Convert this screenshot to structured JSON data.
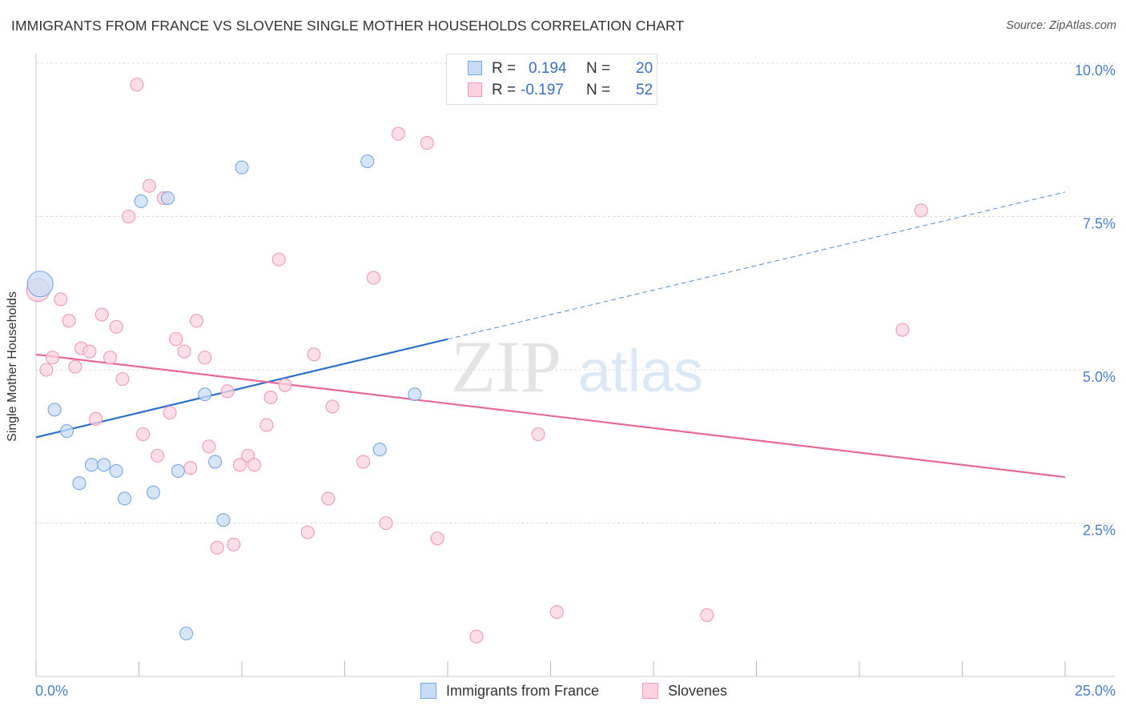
{
  "title": "IMMIGRANTS FROM FRANCE VS SLOVENE SINGLE MOTHER HOUSEHOLDS CORRELATION CHART",
  "source": "Source: ZipAtlas.com",
  "watermark": {
    "part1": "ZIP",
    "part2": "atlas"
  },
  "legend": {
    "r_label": "R =",
    "n_label": "N =",
    "rows": [
      {
        "r": "0.194",
        "n": "20",
        "color": "#a8c8f0"
      },
      {
        "r": "-0.197",
        "n": "52",
        "color": "#f8b8cc"
      }
    ]
  },
  "bottom_legend": [
    {
      "label": "Immigrants from France",
      "color": "#a8c8f0"
    },
    {
      "label": "Slovenes",
      "color": "#f8b8cc"
    }
  ],
  "colors": {
    "blue_fill": "#c9dcf5",
    "blue_stroke": "#7aa6e0",
    "blue_line": "#2d6fc9",
    "pink_fill": "#fbd3e0",
    "pink_stroke": "#f09ab5",
    "pink_line": "#e8689a",
    "tick_label": "#4a7ec9",
    "grid": "#dddddd"
  },
  "chart_data": {
    "type": "scatter",
    "title": "IMMIGRANTS FROM FRANCE VS SLOVENE SINGLE MOTHER HOUSEHOLDS CORRELATION CHART",
    "xlabel": "",
    "ylabel": "Single Mother Households",
    "xlim": [
      0,
      25
    ],
    "ylim": [
      0,
      10.2
    ],
    "x_tick_labels": [
      {
        "value": 0,
        "label": "0.0%"
      },
      {
        "value": 25,
        "label": "25.0%"
      }
    ],
    "y_tick_labels": [
      {
        "value": 2.5,
        "label": "2.5%"
      },
      {
        "value": 5.0,
        "label": "5.0%"
      },
      {
        "value": 7.5,
        "label": "7.5%"
      },
      {
        "value": 10.0,
        "label": "10.0%"
      }
    ],
    "grid": "horizontal dashed",
    "series": [
      {
        "name": "Immigrants from France",
        "points": [
          [
            0.1,
            6.4,
            2.0
          ],
          [
            0.45,
            4.35,
            1
          ],
          [
            0.75,
            4.0,
            1
          ],
          [
            1.05,
            3.15,
            1
          ],
          [
            1.35,
            3.45,
            1
          ],
          [
            1.65,
            3.45,
            1
          ],
          [
            1.95,
            3.35,
            1
          ],
          [
            2.15,
            2.9,
            1
          ],
          [
            2.55,
            7.75,
            1
          ],
          [
            2.85,
            3.0,
            1
          ],
          [
            3.2,
            7.8,
            1
          ],
          [
            3.45,
            3.35,
            1
          ],
          [
            3.65,
            0.7,
            1
          ],
          [
            4.1,
            4.6,
            1
          ],
          [
            4.35,
            3.5,
            1
          ],
          [
            4.55,
            2.55,
            1
          ],
          [
            5.0,
            8.3,
            1
          ],
          [
            8.05,
            8.4,
            1
          ],
          [
            8.35,
            3.7,
            1
          ],
          [
            9.2,
            4.6,
            1
          ]
        ],
        "trend": {
          "x": [
            0,
            10
          ],
          "y": [
            3.9,
            5.5
          ],
          "dashed_extension_to": [
            25,
            7.9
          ]
        }
      },
      {
        "name": "Slovenes",
        "points": [
          [
            0.05,
            6.3,
            1.8
          ],
          [
            0.25,
            5.0,
            1
          ],
          [
            0.4,
            5.2,
            1
          ],
          [
            0.6,
            6.15,
            1
          ],
          [
            0.8,
            5.8,
            1
          ],
          [
            0.95,
            5.05,
            1
          ],
          [
            1.1,
            5.35,
            1
          ],
          [
            1.3,
            5.3,
            1
          ],
          [
            1.45,
            4.2,
            1
          ],
          [
            1.6,
            5.9,
            1
          ],
          [
            1.8,
            5.2,
            1
          ],
          [
            1.95,
            5.7,
            1
          ],
          [
            2.1,
            4.85,
            1
          ],
          [
            2.25,
            7.5,
            1
          ],
          [
            2.45,
            9.65,
            1
          ],
          [
            2.6,
            3.95,
            1
          ],
          [
            2.75,
            8.0,
            1
          ],
          [
            2.95,
            3.6,
            1
          ],
          [
            3.1,
            7.8,
            1
          ],
          [
            3.25,
            4.3,
            1
          ],
          [
            3.4,
            5.5,
            1
          ],
          [
            3.6,
            5.3,
            1
          ],
          [
            3.75,
            3.4,
            1
          ],
          [
            3.9,
            5.8,
            1
          ],
          [
            4.1,
            5.2,
            1
          ],
          [
            4.2,
            3.75,
            1
          ],
          [
            4.4,
            2.1,
            1
          ],
          [
            4.65,
            4.65,
            1
          ],
          [
            4.8,
            2.15,
            1
          ],
          [
            4.95,
            3.45,
            1
          ],
          [
            5.15,
            3.6,
            1
          ],
          [
            5.3,
            3.45,
            1
          ],
          [
            5.6,
            4.1,
            1
          ],
          [
            5.7,
            4.55,
            1
          ],
          [
            5.9,
            6.8,
            1
          ],
          [
            6.05,
            4.75,
            1
          ],
          [
            6.6,
            2.35,
            1
          ],
          [
            6.75,
            5.25,
            1
          ],
          [
            7.1,
            2.9,
            1
          ],
          [
            7.2,
            4.4,
            1
          ],
          [
            7.95,
            3.5,
            1
          ],
          [
            8.2,
            6.5,
            1
          ],
          [
            8.5,
            2.5,
            1
          ],
          [
            8.8,
            8.85,
            1
          ],
          [
            9.5,
            8.7,
            1
          ],
          [
            9.75,
            2.25,
            1
          ],
          [
            10.7,
            0.65,
            1
          ],
          [
            12.2,
            3.95,
            1
          ],
          [
            12.65,
            1.05,
            1
          ],
          [
            16.3,
            1.0,
            1
          ],
          [
            21.05,
            5.65,
            1
          ],
          [
            21.5,
            7.6,
            1
          ]
        ],
        "trend": {
          "x": [
            0,
            25
          ],
          "y": [
            5.25,
            3.25
          ]
        }
      }
    ]
  }
}
